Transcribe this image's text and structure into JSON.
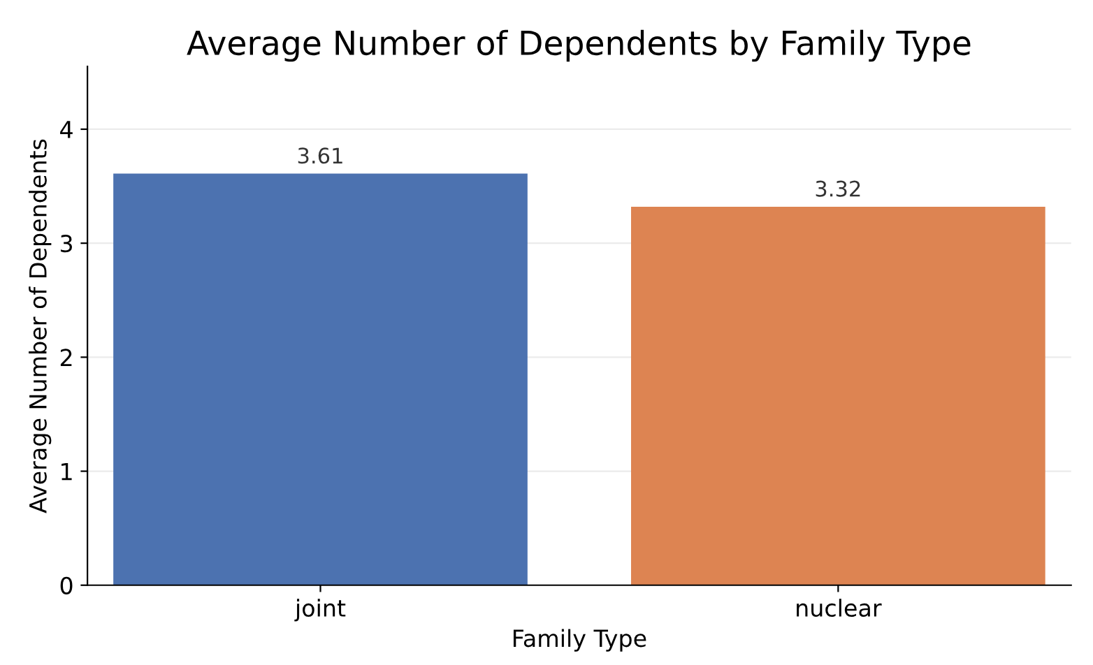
{
  "chart_data": {
    "type": "bar",
    "title": "Average Number of Dependents by Family Type",
    "xlabel": "Family Type",
    "ylabel": "Average Number of Dependents",
    "categories": [
      "joint",
      "nuclear"
    ],
    "values": [
      3.61,
      3.32
    ],
    "colors": [
      "#4c72b0",
      "#dd8452"
    ],
    "ylim": [
      0,
      4.55
    ],
    "yticks": [
      0,
      1,
      2,
      3,
      4
    ],
    "grid": "y",
    "data_labels": true
  }
}
